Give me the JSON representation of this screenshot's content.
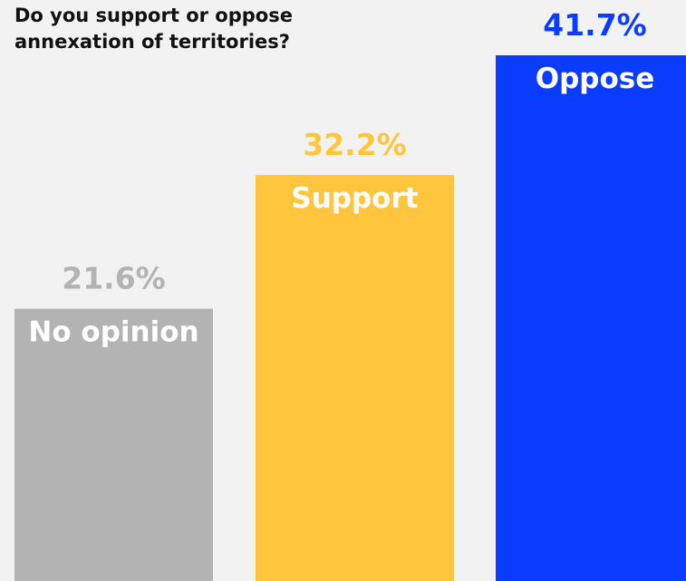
{
  "chart_data": {
    "type": "bar",
    "title_lines": [
      "Do you support or oppose",
      "annexation of territories?"
    ],
    "categories": [
      "No opinion",
      "Support",
      "Oppose"
    ],
    "values": [
      21.6,
      32.2,
      41.7
    ],
    "value_labels": [
      "21.6%",
      "32.2%",
      "41.7%"
    ],
    "colors": [
      "#b3b3b3",
      "#ffc53d",
      "#0a3cff"
    ],
    "grid": false,
    "legend": "none"
  }
}
